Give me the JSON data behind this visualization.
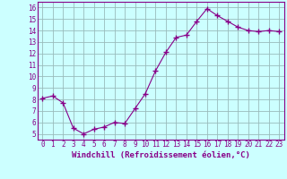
{
  "x": [
    0,
    1,
    2,
    3,
    4,
    5,
    6,
    7,
    8,
    9,
    10,
    11,
    12,
    13,
    14,
    15,
    16,
    17,
    18,
    19,
    20,
    21,
    22,
    23
  ],
  "y": [
    8.1,
    8.3,
    7.7,
    5.5,
    5.0,
    5.4,
    5.6,
    6.0,
    5.9,
    7.2,
    8.5,
    10.5,
    12.1,
    13.4,
    13.6,
    14.8,
    15.9,
    15.3,
    14.8,
    14.3,
    14.0,
    13.9,
    14.0,
    13.9
  ],
  "line_color": "#880088",
  "marker": "+",
  "marker_size": 4,
  "marker_lw": 1.0,
  "bg_color": "#ccffff",
  "grid_color": "#99bbbb",
  "xlabel": "Windchill (Refroidissement éolien,°C)",
  "xlim": [
    -0.5,
    23.5
  ],
  "ylim": [
    4.5,
    16.5
  ],
  "yticks": [
    5,
    6,
    7,
    8,
    9,
    10,
    11,
    12,
    13,
    14,
    15,
    16
  ],
  "xticks": [
    0,
    1,
    2,
    3,
    4,
    5,
    6,
    7,
    8,
    9,
    10,
    11,
    12,
    13,
    14,
    15,
    16,
    17,
    18,
    19,
    20,
    21,
    22,
    23
  ],
  "tick_label_color": "#880088",
  "tick_label_fontsize": 5.5,
  "xlabel_fontsize": 6.5,
  "xlabel_color": "#880088",
  "line_width": 0.8,
  "spine_color": "#880088"
}
